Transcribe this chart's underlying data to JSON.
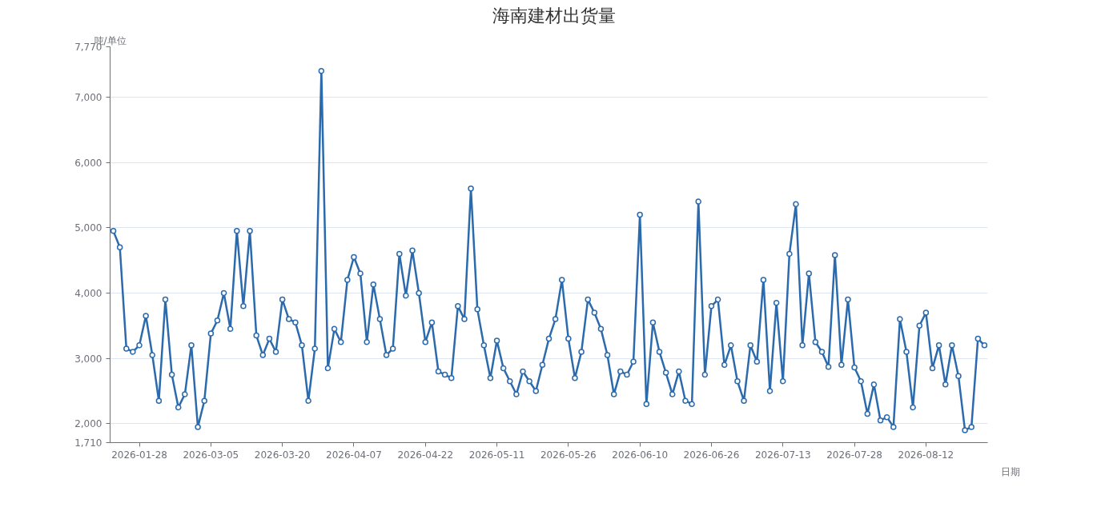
{
  "chart_data": {
    "type": "line",
    "legend": "top",
    "xlabel": "日期",
    "ylabel": "吨/单位",
    "marker": "circle",
    "line_style": "solid",
    "grid": "y",
    "categories": [
      null,
      null,
      null,
      null,
      "2026-01-28",
      null,
      null,
      null,
      null,
      null,
      null,
      null,
      null,
      null,
      null,
      "2026-03-05",
      null,
      null,
      null,
      null,
      null,
      null,
      null,
      null,
      null,
      null,
      "2026-03-20",
      null,
      null,
      null,
      null,
      null,
      null,
      null,
      null,
      null,
      null,
      "2026-04-07",
      null,
      null,
      null,
      null,
      null,
      null,
      null,
      null,
      null,
      null,
      "2026-04-22",
      null,
      null,
      null,
      null,
      null,
      null,
      null,
      null,
      null,
      null,
      "2026-05-11",
      null,
      null,
      null,
      null,
      null,
      null,
      null,
      null,
      null,
      null,
      "2026-05-26",
      null,
      null,
      null,
      null,
      null,
      null,
      null,
      null,
      null,
      null,
      "2026-06-10",
      null,
      null,
      null,
      null,
      null,
      null,
      null,
      null,
      null,
      null,
      "2026-06-26",
      null,
      null,
      null,
      null,
      null,
      null,
      null,
      null,
      null,
      null,
      "2026-07-13",
      null,
      null,
      null,
      null,
      null,
      null,
      null,
      null,
      null,
      null,
      "2026-07-28",
      null,
      null,
      null,
      null,
      null,
      null,
      null,
      null,
      null,
      null,
      "2026-08-12",
      null,
      null,
      null,
      null,
      null,
      null,
      null,
      null,
      null
    ],
    "ylim": [
      1710,
      7770
    ],
    "yticks": [
      {
        "value": 1710,
        "label": "1,710"
      },
      {
        "value": 2000,
        "label": "2,000"
      },
      {
        "value": 3000,
        "label": "3,000"
      },
      {
        "value": 4000,
        "label": "4,000"
      },
      {
        "value": 5000,
        "label": "5,000"
      },
      {
        "value": 6000,
        "label": "6,000"
      },
      {
        "value": 7000,
        "label": "7,000"
      },
      {
        "value": 7770,
        "label": "7,770"
      }
    ],
    "series": [
      {
        "name": "海南建材出货量",
        "color": "#2b6aad",
        "values": [
          4950,
          4700,
          3150,
          3100,
          3200,
          3650,
          3050,
          2350,
          3900,
          2750,
          2250,
          2450,
          3200,
          1950,
          2350,
          3380,
          3580,
          4000,
          3450,
          4950,
          3800,
          4950,
          3350,
          3050,
          3300,
          3100,
          3900,
          3600,
          3550,
          3200,
          2350,
          3150,
          7400,
          2850,
          3450,
          3250,
          4200,
          4550,
          4300,
          3250,
          4130,
          3600,
          3050,
          3150,
          4600,
          3960,
          4650,
          4000,
          3250,
          3550,
          2800,
          2750,
          2700,
          3800,
          3600,
          5600,
          3750,
          3200,
          2700,
          3270,
          2850,
          2650,
          2450,
          2800,
          2650,
          2500,
          2900,
          3300,
          3600,
          4200,
          3300,
          2700,
          3100,
          3900,
          3700,
          3450,
          3050,
          2450,
          2800,
          2750,
          2950,
          5200,
          2300,
          3550,
          3100,
          2780,
          2450,
          2800,
          2350,
          2300,
          5400,
          2750,
          3800,
          3900,
          2900,
          3200,
          2650,
          2350,
          3200,
          2950,
          4200,
          2500,
          3850,
          2650,
          4600,
          5360,
          3200,
          4300,
          3250,
          3100,
          2870,
          4580,
          2900,
          3900,
          2860,
          2650,
          2150,
          2600,
          2050,
          2100,
          1950,
          3600,
          3100,
          2250,
          3500,
          3700,
          2850,
          3200,
          2600,
          3200,
          2730,
          1900,
          1950,
          3300,
          3200
        ]
      }
    ]
  }
}
